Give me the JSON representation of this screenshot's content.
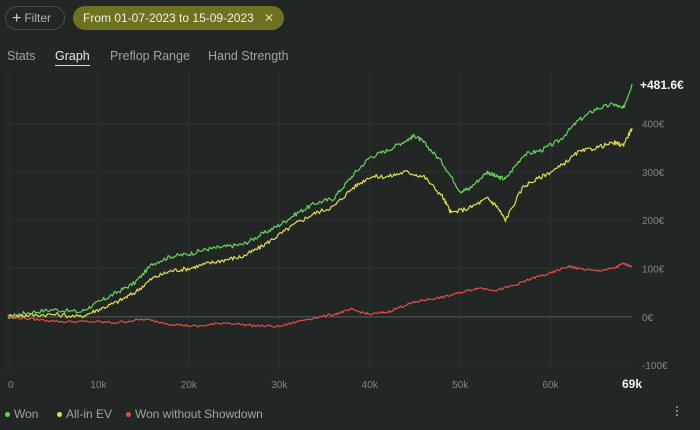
{
  "toolbar": {
    "filter_icon": "plus-icon",
    "filter_label": "Filter",
    "date_range_label": "From 01-07-2023 to 15-09-2023",
    "date_range_close_icon": "close-icon",
    "date_range_close_glyph": "✕"
  },
  "tabs": [
    {
      "label": "Stats",
      "active": false
    },
    {
      "label": "Graph",
      "active": true
    },
    {
      "label": "Preflop Range",
      "active": false
    },
    {
      "label": "Hand Strength",
      "active": false
    }
  ],
  "chart_data": {
    "type": "line",
    "end_label": "+481.6€",
    "y_ticks": [
      "400€",
      "300€",
      "200€",
      "100€",
      "0€",
      "-100€"
    ],
    "y_tick_values": [
      400,
      300,
      200,
      100,
      0,
      -100
    ],
    "ylim": [
      -110,
      490
    ],
    "x_ticks": [
      "0",
      "10k",
      "20k",
      "30k",
      "40k",
      "50k",
      "60k",
      "69k"
    ],
    "x_tick_values": [
      0,
      10000,
      20000,
      30000,
      40000,
      50000,
      60000,
      69000
    ],
    "xlim": [
      0,
      69000
    ],
    "grid": true,
    "legend_position": "bottom-left",
    "series": [
      {
        "name": "Won",
        "color": "#67d35d",
        "points": [
          [
            0,
            0
          ],
          [
            2000,
            8
          ],
          [
            5000,
            15
          ],
          [
            8000,
            10
          ],
          [
            10000,
            30
          ],
          [
            12000,
            50
          ],
          [
            14000,
            70
          ],
          [
            16000,
            110
          ],
          [
            18000,
            125
          ],
          [
            20000,
            130
          ],
          [
            22000,
            140
          ],
          [
            24000,
            145
          ],
          [
            26000,
            150
          ],
          [
            28000,
            170
          ],
          [
            30000,
            190
          ],
          [
            32000,
            215
          ],
          [
            34000,
            235
          ],
          [
            36000,
            245
          ],
          [
            38000,
            290
          ],
          [
            40000,
            330
          ],
          [
            42000,
            345
          ],
          [
            44000,
            365
          ],
          [
            45000,
            375
          ],
          [
            46000,
            360
          ],
          [
            48000,
            320
          ],
          [
            50000,
            260
          ],
          [
            51000,
            265
          ],
          [
            53000,
            300
          ],
          [
            54000,
            290
          ],
          [
            55000,
            285
          ],
          [
            57000,
            335
          ],
          [
            59000,
            345
          ],
          [
            61000,
            365
          ],
          [
            63000,
            405
          ],
          [
            65000,
            430
          ],
          [
            67000,
            440
          ],
          [
            68000,
            430
          ],
          [
            69000,
            481.6
          ]
        ]
      },
      {
        "name": "All-in EV",
        "color": "#e0e14a",
        "points": [
          [
            0,
            0
          ],
          [
            2000,
            3
          ],
          [
            5000,
            5
          ],
          [
            8000,
            0
          ],
          [
            10000,
            15
          ],
          [
            12000,
            30
          ],
          [
            14000,
            50
          ],
          [
            16000,
            80
          ],
          [
            18000,
            95
          ],
          [
            20000,
            100
          ],
          [
            22000,
            110
          ],
          [
            24000,
            118
          ],
          [
            26000,
            125
          ],
          [
            28000,
            145
          ],
          [
            30000,
            170
          ],
          [
            32000,
            195
          ],
          [
            34000,
            215
          ],
          [
            36000,
            228
          ],
          [
            38000,
            265
          ],
          [
            40000,
            290
          ],
          [
            42000,
            290
          ],
          [
            44000,
            300
          ],
          [
            46000,
            290
          ],
          [
            48000,
            250
          ],
          [
            49000,
            215
          ],
          [
            51000,
            225
          ],
          [
            53000,
            245
          ],
          [
            54000,
            230
          ],
          [
            55000,
            200
          ],
          [
            57000,
            270
          ],
          [
            59000,
            290
          ],
          [
            61000,
            310
          ],
          [
            63000,
            340
          ],
          [
            65000,
            350
          ],
          [
            67000,
            360
          ],
          [
            68000,
            355
          ],
          [
            69000,
            390
          ]
        ]
      },
      {
        "name": "Won without Showdown",
        "color": "#e04f4a",
        "points": [
          [
            0,
            0
          ],
          [
            3000,
            -5
          ],
          [
            6000,
            -10
          ],
          [
            9000,
            -10
          ],
          [
            12000,
            -12
          ],
          [
            15000,
            -5
          ],
          [
            18000,
            -15
          ],
          [
            21000,
            -20
          ],
          [
            24000,
            -12
          ],
          [
            27000,
            -18
          ],
          [
            30000,
            -20
          ],
          [
            33000,
            -5
          ],
          [
            36000,
            5
          ],
          [
            38000,
            15
          ],
          [
            40000,
            5
          ],
          [
            42000,
            10
          ],
          [
            44000,
            25
          ],
          [
            46000,
            35
          ],
          [
            48000,
            40
          ],
          [
            50000,
            50
          ],
          [
            52000,
            60
          ],
          [
            54000,
            55
          ],
          [
            56000,
            65
          ],
          [
            58000,
            80
          ],
          [
            60000,
            90
          ],
          [
            62000,
            105
          ],
          [
            63000,
            100
          ],
          [
            65000,
            95
          ],
          [
            67000,
            100
          ],
          [
            68000,
            110
          ],
          [
            69000,
            105
          ]
        ]
      }
    ]
  },
  "more_icon": "more-vertical-icon"
}
